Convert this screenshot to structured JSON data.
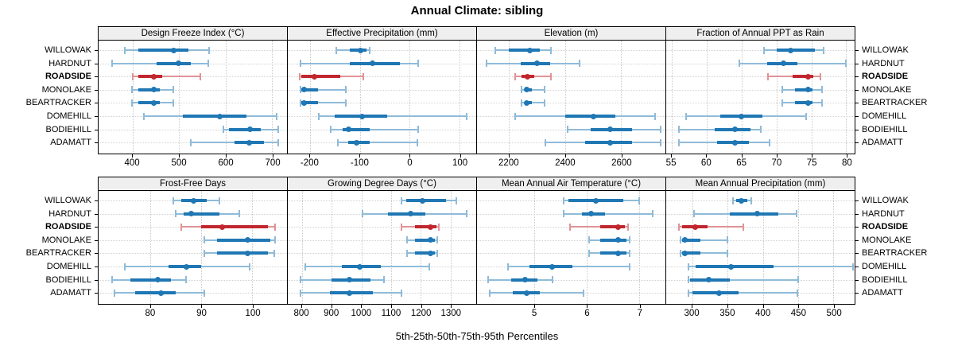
{
  "title": "Annual Climate: sibling",
  "caption": "5th-25th-50th-75th-95th Percentiles",
  "sites": [
    "WILLOWAK",
    "HARDNUT",
    "ROADSIDE",
    "MONOLAKE",
    "BEARTRACKER",
    "DOMEHILL",
    "BODIEHILL",
    "ADAMATT"
  ],
  "highlight_site": "ROADSIDE",
  "colors": {
    "series_blue": "#1f77b4",
    "series_blue_light": "#8fbbd9",
    "highlight_red": "#c1272d",
    "highlight_red_light": "#e09396",
    "strip_bg": "#efefef",
    "grid": "#c9c9c9"
  },
  "chart_data": [
    {
      "type": "scatter",
      "subtype": "percentile-dotplot",
      "title": "Design Freeze Index (°C)",
      "xlim": [
        327,
        732
      ],
      "ticks": [
        400,
        500,
        600,
        700
      ],
      "percentile_labels": [
        "5th",
        "25th",
        "50th",
        "75th",
        "95th"
      ],
      "rows": [
        [
          383,
          413,
          488,
          520,
          564
        ],
        [
          356,
          452,
          498,
          526,
          563
        ],
        [
          400,
          412,
          446,
          463,
          545
        ],
        [
          398,
          413,
          446,
          458,
          488
        ],
        [
          398,
          413,
          446,
          458,
          488
        ],
        [
          424,
          508,
          588,
          645,
          710
        ],
        [
          596,
          607,
          652,
          675,
          714
        ],
        [
          525,
          620,
          651,
          682,
          714
        ]
      ]
    },
    {
      "type": "scatter",
      "subtype": "percentile-dotplot",
      "title": "Effective Precipitation (mm)",
      "xlim": [
        -245,
        134
      ],
      "ticks": [
        -200,
        -100,
        0,
        100
      ],
      "percentile_labels": [
        "5th",
        "25th",
        "50th",
        "75th",
        "95th"
      ],
      "rows": [
        [
          -148,
          -120,
          -98,
          -87,
          -81
        ],
        [
          -220,
          -120,
          -74,
          -20,
          18
        ],
        [
          -221,
          -218,
          -192,
          -140,
          -93
        ],
        [
          -220,
          -218,
          -213,
          -185,
          -128
        ],
        [
          -220,
          -218,
          -213,
          -185,
          -128
        ],
        [
          -183,
          -150,
          -95,
          -45,
          115
        ],
        [
          -158,
          -135,
          -122,
          -80,
          17
        ],
        [
          -145,
          -123,
          -107,
          -80,
          15
        ]
      ]
    },
    {
      "type": "scatter",
      "subtype": "percentile-dotplot",
      "title": "Elevation (m)",
      "xlim": [
        2085,
        2758
      ],
      "ticks": [
        2200,
        2400,
        2600
      ],
      "percentile_labels": [
        "5th",
        "25th",
        "50th",
        "75th",
        "95th"
      ],
      "rows": [
        [
          2150,
          2200,
          2275,
          2310,
          2350
        ],
        [
          2120,
          2240,
          2300,
          2345,
          2450
        ],
        [
          2220,
          2245,
          2265,
          2290,
          2350
        ],
        [
          2245,
          2255,
          2263,
          2280,
          2325
        ],
        [
          2245,
          2255,
          2263,
          2280,
          2325
        ],
        [
          2220,
          2400,
          2500,
          2580,
          2720
        ],
        [
          2410,
          2490,
          2560,
          2640,
          2740
        ],
        [
          2330,
          2470,
          2560,
          2640,
          2740
        ]
      ]
    },
    {
      "type": "scatter",
      "subtype": "percentile-dotplot",
      "title": "Fraction of Annual PPT as Rain",
      "xlim": [
        54.2,
        81.2
      ],
      "ticks": [
        55,
        60,
        65,
        70,
        75,
        80
      ],
      "percentile_labels": [
        "5th",
        "25th",
        "50th",
        "75th",
        "95th"
      ],
      "rows": [
        [
          68.2,
          70.0,
          72.0,
          75.5,
          76.7
        ],
        [
          64.7,
          68.7,
          71.0,
          73.0,
          80.0
        ],
        [
          68.8,
          72.3,
          74.5,
          75.3,
          76.3
        ],
        [
          70.8,
          72.6,
          74.5,
          75.2,
          76.5
        ],
        [
          70.8,
          72.6,
          74.5,
          75.2,
          76.5
        ],
        [
          57.0,
          62.0,
          65.0,
          68.0,
          74.2
        ],
        [
          56.0,
          61.2,
          64.0,
          66.3,
          67.7
        ],
        [
          56.0,
          61.5,
          64.0,
          66.0,
          69.0
        ]
      ]
    },
    {
      "type": "scatter",
      "subtype": "percentile-dotplot",
      "title": "Frost-Free Days",
      "xlim": [
        69.8,
        106.8
      ],
      "ticks": [
        80,
        90,
        100
      ],
      "percentile_labels": [
        "5th",
        "25th",
        "50th",
        "75th",
        "95th"
      ],
      "rows": [
        [
          84.5,
          86.0,
          88.5,
          91.0,
          93.5
        ],
        [
          85.0,
          86.5,
          88.0,
          93.5,
          97.5
        ],
        [
          86.0,
          90.0,
          94.0,
          103.0,
          104.5
        ],
        [
          90.5,
          93.0,
          99.0,
          103.5,
          104.5
        ],
        [
          90.5,
          93.0,
          99.0,
          103.0,
          104.3
        ],
        [
          75.0,
          83.5,
          87.0,
          90.0,
          99.5
        ],
        [
          72.5,
          76.0,
          81.5,
          84.0,
          87.0
        ],
        [
          73.0,
          77.0,
          82.0,
          85.0,
          90.5
        ]
      ]
    },
    {
      "type": "scatter",
      "subtype": "percentile-dotplot",
      "title": "Growing Degree Days (°C)",
      "xlim": [
        752,
        1387
      ],
      "ticks": [
        800,
        900,
        1000,
        1100,
        1200,
        1300
      ],
      "percentile_labels": [
        "5th",
        "25th",
        "50th",
        "75th",
        "95th"
      ],
      "rows": [
        [
          1135,
          1150,
          1205,
          1285,
          1320
        ],
        [
          1005,
          1090,
          1165,
          1215,
          1355
        ],
        [
          1135,
          1180,
          1232,
          1252,
          1262
        ],
        [
          1155,
          1180,
          1232,
          1247,
          1257
        ],
        [
          1155,
          1180,
          1232,
          1247,
          1257
        ],
        [
          810,
          935,
          995,
          1065,
          1230
        ],
        [
          795,
          900,
          960,
          1030,
          1075
        ],
        [
          795,
          895,
          960,
          1040,
          1135
        ]
      ]
    },
    {
      "type": "scatter",
      "subtype": "percentile-dotplot",
      "title": "Mean Annual Air Temperature (°C)",
      "xlim": [
        3.9,
        7.5
      ],
      "ticks": [
        5,
        6,
        7
      ],
      "percentile_labels": [
        "5th",
        "25th",
        "50th",
        "75th",
        "95th"
      ],
      "rows": [
        [
          5.55,
          5.65,
          6.17,
          6.7,
          7.0
        ],
        [
          5.55,
          5.9,
          6.08,
          6.35,
          7.25
        ],
        [
          5.67,
          6.25,
          6.6,
          6.72,
          6.79
        ],
        [
          6.04,
          6.25,
          6.6,
          6.75,
          6.81
        ],
        [
          6.04,
          6.25,
          6.6,
          6.75,
          6.81
        ],
        [
          4.5,
          4.9,
          5.33,
          5.72,
          6.82
        ],
        [
          4.12,
          4.55,
          4.82,
          5.05,
          5.35
        ],
        [
          4.15,
          4.58,
          4.85,
          5.1,
          5.93
        ]
      ]
    },
    {
      "type": "scatter",
      "subtype": "percentile-dotplot",
      "title": "Mean Annual Precipitation (mm)",
      "xlim": [
        263,
        530
      ],
      "ticks": [
        300,
        350,
        400,
        450,
        500
      ],
      "percentile_labels": [
        "5th",
        "25th",
        "50th",
        "75th",
        "95th"
      ],
      "rows": [
        [
          358,
          362,
          370,
          378,
          383
        ],
        [
          302,
          353,
          392,
          422,
          448
        ],
        [
          281,
          285,
          304,
          322,
          372
        ],
        [
          283,
          286,
          290,
          311,
          350
        ],
        [
          283,
          286,
          290,
          311,
          350
        ],
        [
          295,
          305,
          355,
          415,
          528
        ],
        [
          294,
          297,
          323,
          353,
          450
        ],
        [
          294,
          300,
          338,
          365,
          449
        ]
      ]
    }
  ]
}
